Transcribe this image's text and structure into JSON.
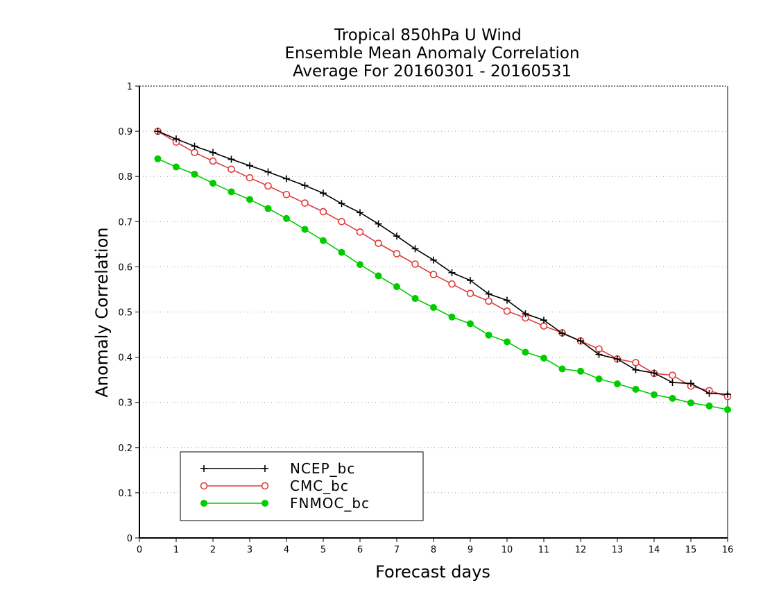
{
  "chart_data": {
    "type": "line",
    "title": [
      "Tropical 850hPa U Wind",
      "Ensemble Mean Anomaly Correlation",
      "Average For 20160301 - 20160531"
    ],
    "xlabel": "Forecast days",
    "ylabel": "Anomaly Correlation",
    "xlim": [
      0,
      16
    ],
    "ylim": [
      0,
      1
    ],
    "xticks": [
      "0",
      "1",
      "2",
      "3",
      "4",
      "5",
      "6",
      "7",
      "8",
      "9",
      "10",
      "11",
      "12",
      "13",
      "14",
      "15",
      "16"
    ],
    "yticks": [
      "0",
      "0.1",
      "0.2",
      "0.3",
      "0.4",
      "0.5",
      "0.6",
      "0.7",
      "0.8",
      "0.9",
      "1"
    ],
    "grid": true,
    "legend_position": "bottom-left",
    "x": [
      0.5,
      1,
      1.5,
      2,
      2.5,
      3,
      3.5,
      4,
      4.5,
      5,
      5.5,
      6,
      6.5,
      7,
      7.5,
      8,
      8.5,
      9,
      9.5,
      10,
      10.5,
      11,
      11.5,
      12,
      12.5,
      13,
      13.5,
      14,
      14.5,
      15,
      15.5,
      16
    ],
    "series": [
      {
        "name": "NCEP_bc",
        "color": "#000000",
        "marker": "plus",
        "values": [
          0.9,
          0.883,
          0.867,
          0.853,
          0.838,
          0.824,
          0.81,
          0.795,
          0.78,
          0.763,
          0.74,
          0.72,
          0.695,
          0.668,
          0.64,
          0.615,
          0.587,
          0.57,
          0.54,
          0.526,
          0.496,
          0.482,
          0.453,
          0.436,
          0.406,
          0.396,
          0.372,
          0.365,
          0.344,
          0.342,
          0.32,
          0.318
        ]
      },
      {
        "name": "CMC_bc",
        "color": "#e03c3c",
        "marker": "open-circle",
        "values": [
          0.9,
          0.876,
          0.853,
          0.834,
          0.816,
          0.797,
          0.779,
          0.76,
          0.741,
          0.722,
          0.7,
          0.677,
          0.652,
          0.629,
          0.606,
          0.583,
          0.562,
          0.541,
          0.524,
          0.502,
          0.487,
          0.469,
          0.454,
          0.436,
          0.418,
          0.396,
          0.388,
          0.364,
          0.36,
          0.336,
          0.326,
          0.313
        ]
      },
      {
        "name": "FNMOC_bc",
        "color": "#00cc00",
        "marker": "filled-circle",
        "values": [
          0.839,
          0.821,
          0.805,
          0.785,
          0.766,
          0.749,
          0.729,
          0.707,
          0.683,
          0.658,
          0.632,
          0.605,
          0.58,
          0.556,
          0.53,
          0.51,
          0.489,
          0.474,
          0.449,
          0.434,
          0.411,
          0.398,
          0.374,
          0.369,
          0.352,
          0.341,
          0.329,
          0.317,
          0.309,
          0.299,
          0.292,
          0.284
        ]
      }
    ]
  }
}
